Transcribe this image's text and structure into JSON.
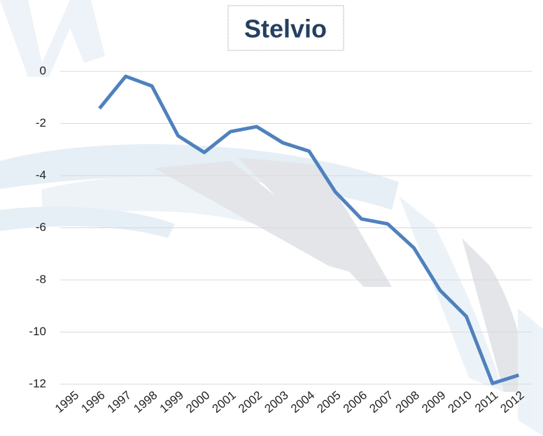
{
  "chart_data": {
    "type": "line",
    "title": "Stelvio",
    "categories": [
      "1995",
      "1996",
      "1997",
      "1998",
      "1999",
      "2000",
      "2001",
      "2002",
      "2003",
      "2004",
      "2005",
      "2006",
      "2007",
      "2008",
      "2009",
      "2010",
      "2011",
      "2012"
    ],
    "series": [
      {
        "name": "Stelvio",
        "color": "#4f81bd",
        "values": [
          null,
          -1.42,
          -0.19,
          -0.56,
          -2.47,
          -3.11,
          -2.31,
          -2.12,
          -2.74,
          -3.06,
          -4.62,
          -5.66,
          -5.85,
          -6.77,
          -8.4,
          -9.4,
          -11.97,
          -11.65
        ]
      }
    ],
    "ylim": [
      -12,
      0
    ],
    "yticks": [
      0,
      -2,
      -4,
      -6,
      -8,
      -10,
      -12
    ],
    "grid": true
  }
}
